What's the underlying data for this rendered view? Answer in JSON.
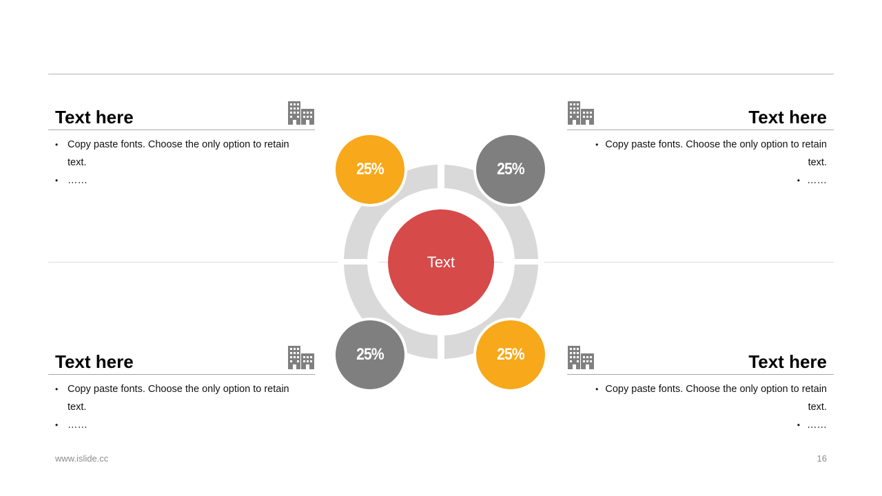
{
  "colors": {
    "accent_orange": "#F8A81B",
    "accent_gray": "#7F7F7F",
    "center_red": "#D64A4A",
    "ring_gray": "#D9D9D9",
    "icon_gray": "#808080"
  },
  "panels": {
    "top_left": {
      "title": "Text here",
      "icon": "building-icon",
      "bullets": [
        "Copy paste fonts. Choose the only option to retain text.",
        "……"
      ]
    },
    "top_right": {
      "title": "Text here",
      "icon": "building-icon",
      "bullets": [
        "Copy paste fonts. Choose the only option to retain text.",
        "……"
      ]
    },
    "bottom_left": {
      "title": "Text here",
      "icon": "building-icon",
      "bullets": [
        "Copy paste fonts. Choose the only option to retain text.",
        "……"
      ]
    },
    "bottom_right": {
      "title": "Text here",
      "icon": "building-icon",
      "bullets": [
        "Copy paste fonts. Choose the only option to retain text.",
        "……"
      ]
    }
  },
  "diagram": {
    "center_label": "Text",
    "nodes": [
      {
        "label": "25%",
        "color": "#F8A81B"
      },
      {
        "label": "25%",
        "color": "#7F7F7F"
      },
      {
        "label": "25%",
        "color": "#7F7F7F"
      },
      {
        "label": "25%",
        "color": "#F8A81B"
      }
    ]
  },
  "footer": {
    "website": "www.islide.cc",
    "page_number": "16"
  }
}
